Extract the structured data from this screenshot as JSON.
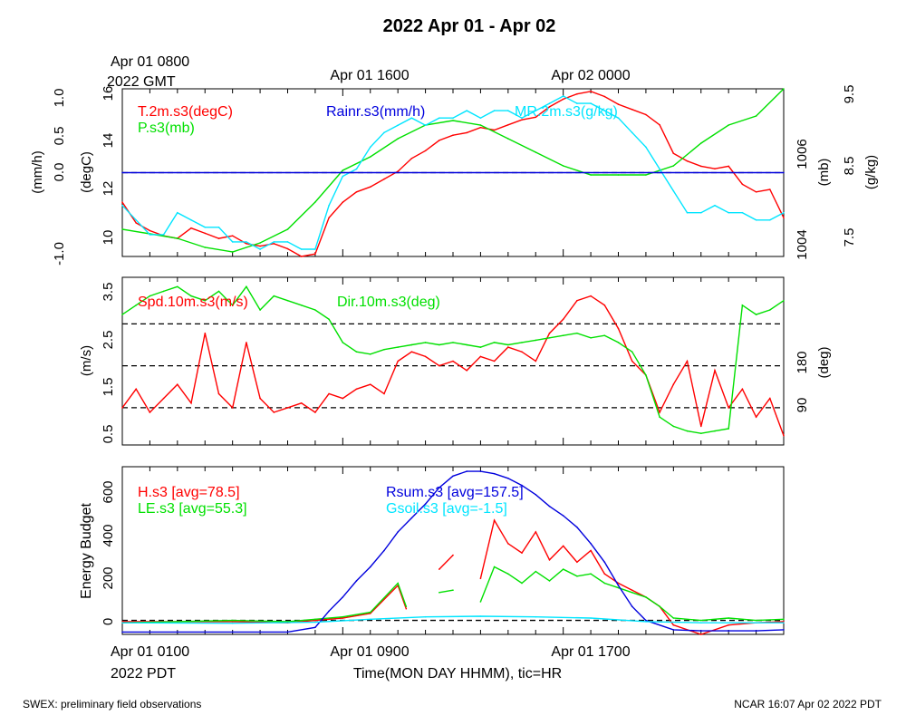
{
  "title": "2022 Apr 01 - Apr 02",
  "colors": {
    "red": "#ff0000",
    "green": "#00e000",
    "blue": "#0000dd",
    "cyan": "#00e5ff",
    "black": "#000000"
  },
  "top_labels": {
    "gmt_line1": "Apr 01 0800",
    "gmt_line2": "2022 GMT",
    "mid1": "Apr 01 1600",
    "mid2": "Apr 02 0000"
  },
  "bottom_labels": {
    "pdt_line1": "Apr 01 0100",
    "pdt_line2": "2022 PDT",
    "mid1": "Apr 01 0900",
    "mid2": "Apr 01 1700",
    "xlabel": "Time(MON DAY HHMM), tic=HR"
  },
  "footer": {
    "left": "SWEX: preliminary field observations",
    "right": "NCAR 16:07 Apr 02 2022 PDT"
  },
  "chart_data": [
    {
      "type": "line",
      "panel": "met",
      "axes": [
        {
          "label": "(mm/h)",
          "ticks": [
            "1.0",
            "0.5",
            "0.0",
            "-1.0"
          ],
          "range": [
            -1,
            1
          ]
        },
        {
          "label": "(degC)",
          "ticks": [
            "16",
            "14",
            "12",
            "10"
          ],
          "range": [
            9.5,
            16
          ]
        },
        {
          "label": "(mb)",
          "ticks": [
            "1006",
            "1004"
          ],
          "range": [
            1003.8,
            1007.5
          ]
        },
        {
          "label": "(g/kg)",
          "ticks": [
            "9.5",
            "8.5",
            "7.5"
          ],
          "range": [
            7.3,
            9.6
          ]
        }
      ],
      "x_hours": [
        0,
        24
      ],
      "series": [
        {
          "name": "T.2m.s3(degC)",
          "color": "#ff0000",
          "axis": 1,
          "x": [
            0,
            0.5,
            1,
            1.5,
            2,
            2.5,
            3,
            3.5,
            4,
            4.5,
            5,
            5.5,
            6,
            6.5,
            7,
            7.5,
            8,
            8.5,
            9,
            9.5,
            10,
            10.5,
            11,
            11.5,
            12,
            12.5,
            13,
            13.5,
            14,
            14.5,
            15,
            15.5,
            16,
            16.5,
            17,
            17.5,
            18,
            18.5,
            19,
            19.5,
            20,
            20.5,
            21,
            21.5,
            22,
            22.5,
            23,
            23.5,
            24
          ],
          "y": [
            11.6,
            10.8,
            10.5,
            10.3,
            10.2,
            10.6,
            10.4,
            10.2,
            10.3,
            10.0,
            9.9,
            10.0,
            9.8,
            9.5,
            9.6,
            11.0,
            11.6,
            12.0,
            12.2,
            12.5,
            12.8,
            13.3,
            13.6,
            14.0,
            14.2,
            14.3,
            14.5,
            14.4,
            14.6,
            14.8,
            14.9,
            15.3,
            15.6,
            15.8,
            15.9,
            15.7,
            15.4,
            15.2,
            15.0,
            14.6,
            13.5,
            13.2,
            13.0,
            12.9,
            13.0,
            12.3,
            12.0,
            12.1,
            11.0
          ]
        },
        {
          "name": "P.s3(mb)",
          "color": "#00e000",
          "axis": 2,
          "x": [
            0,
            1,
            2,
            3,
            4,
            5,
            6,
            7,
            8,
            9,
            10,
            11,
            12,
            13,
            14,
            15,
            16,
            17,
            18,
            19,
            20,
            21,
            22,
            23,
            24
          ],
          "y": [
            1004.4,
            1004.3,
            1004.2,
            1004.0,
            1003.9,
            1004.1,
            1004.4,
            1005.0,
            1005.7,
            1006.0,
            1006.4,
            1006.7,
            1006.8,
            1006.7,
            1006.4,
            1006.1,
            1005.8,
            1005.6,
            1005.6,
            1005.6,
            1005.8,
            1006.3,
            1006.7,
            1006.9,
            1007.5
          ]
        },
        {
          "name": "MR.2m.s3(g/kg)",
          "color": "#00e5ff",
          "axis": 3,
          "x": [
            0,
            0.5,
            1,
            1.5,
            2,
            2.5,
            3,
            3.5,
            4,
            4.5,
            5,
            5.5,
            6,
            6.5,
            7,
            7.5,
            8,
            8.5,
            9,
            9.5,
            10,
            10.5,
            11,
            11.5,
            12,
            12.5,
            13,
            13.5,
            14,
            14.5,
            15,
            15.5,
            16,
            16.5,
            17,
            17.5,
            18,
            18.5,
            19,
            19.5,
            20,
            20.5,
            21,
            21.5,
            22,
            22.5,
            23,
            23.5,
            24
          ],
          "y": [
            8.0,
            7.8,
            7.6,
            7.6,
            7.9,
            7.8,
            7.7,
            7.7,
            7.5,
            7.5,
            7.4,
            7.5,
            7.5,
            7.4,
            7.4,
            8.0,
            8.4,
            8.5,
            8.8,
            9.0,
            9.1,
            9.2,
            9.1,
            9.2,
            9.2,
            9.3,
            9.2,
            9.3,
            9.3,
            9.2,
            9.3,
            9.4,
            9.5,
            9.4,
            9.4,
            9.3,
            9.2,
            9.0,
            8.8,
            8.5,
            8.2,
            7.9,
            7.9,
            8.0,
            7.9,
            7.9,
            7.8,
            7.8,
            7.9
          ]
        },
        {
          "name": "Rainr.s3(mm/h)",
          "color": "#0000dd",
          "axis": 0,
          "x": [
            0,
            24
          ],
          "y": [
            0.0,
            0.0
          ]
        }
      ],
      "reference_lines": [
        {
          "axis": 0,
          "value": 0.0,
          "style": "dashed"
        }
      ]
    },
    {
      "type": "line",
      "panel": "wind",
      "axes": [
        {
          "label": "(m/s)",
          "ticks": [
            "3.5",
            "2.5",
            "1.5",
            "0.5"
          ],
          "range": [
            0.2,
            3.8
          ]
        },
        {
          "label": "(deg)",
          "ticks": [
            "180",
            "90"
          ],
          "range": [
            0,
            360
          ]
        }
      ],
      "series": [
        {
          "name": "Spd.10m.s3(m/s)",
          "color": "#ff0000",
          "axis": 0,
          "x": [
            0,
            0.5,
            1,
            1.5,
            2,
            2.5,
            3,
            3.5,
            4,
            4.5,
            5,
            5.5,
            6,
            6.5,
            7,
            7.5,
            8,
            8.5,
            9,
            9.5,
            10,
            10.5,
            11,
            11.5,
            12,
            12.5,
            13,
            13.5,
            14,
            14.5,
            15,
            15.5,
            16,
            16.5,
            17,
            17.5,
            18,
            18.5,
            19,
            19.5,
            20,
            20.5,
            21,
            21.5,
            22,
            22.5,
            23,
            23.5,
            24
          ],
          "y": [
            1.0,
            1.4,
            0.9,
            1.2,
            1.5,
            1.1,
            2.6,
            1.3,
            1.0,
            2.4,
            1.2,
            0.9,
            1.0,
            1.1,
            0.9,
            1.3,
            1.2,
            1.4,
            1.5,
            1.3,
            2.0,
            2.2,
            2.1,
            1.9,
            2.0,
            1.8,
            2.1,
            2.0,
            2.3,
            2.2,
            2.0,
            2.6,
            2.9,
            3.3,
            3.4,
            3.2,
            2.7,
            2.0,
            1.7,
            0.9,
            1.5,
            2.0,
            0.6,
            1.8,
            1.0,
            1.4,
            0.8,
            1.2,
            0.4
          ]
        },
        {
          "name": "Dir.10m.s3(deg)",
          "color": "#00e000",
          "axis": 1,
          "x": [
            0,
            0.5,
            1,
            1.5,
            2,
            2.5,
            3,
            3.5,
            4,
            4.5,
            5,
            5.5,
            6,
            6.5,
            7,
            7.5,
            8,
            8.5,
            9,
            9.5,
            10,
            10.5,
            11,
            11.5,
            12,
            12.5,
            13,
            13.5,
            14,
            14.5,
            15,
            15.5,
            16,
            16.5,
            17,
            17.5,
            18,
            18.5,
            19,
            19.5,
            20,
            20.5,
            21,
            21.5,
            22,
            22.5,
            23,
            23.5,
            24
          ],
          "y": [
            280,
            300,
            320,
            330,
            340,
            320,
            310,
            330,
            300,
            340,
            290,
            320,
            310,
            300,
            290,
            270,
            220,
            200,
            195,
            205,
            210,
            215,
            220,
            215,
            220,
            215,
            210,
            220,
            215,
            220,
            225,
            230,
            235,
            240,
            230,
            235,
            220,
            200,
            150,
            60,
            40,
            30,
            25,
            30,
            35,
            300,
            280,
            290,
            310
          ]
        }
      ],
      "reference_lines": [
        {
          "axis": 0,
          "value": 2.8,
          "style": "dashed"
        },
        {
          "axis": 0,
          "value": 1.9,
          "style": "dashed"
        },
        {
          "axis": 0,
          "value": 1.0,
          "style": "dashed"
        }
      ]
    },
    {
      "type": "line",
      "panel": "energy",
      "axes": [
        {
          "label": "Energy Budget",
          "ticks": [
            "600",
            "400",
            "200",
            "0"
          ],
          "range": [
            -60,
            660
          ]
        }
      ],
      "series": [
        {
          "name": "H.s3 [avg=78.5]",
          "color": "#ff0000",
          "x": [
            0,
            2,
            4,
            6,
            7,
            8,
            9,
            10,
            10.3,
            10.8,
            11.5,
            12,
            12.5,
            13,
            13.5,
            14,
            14.5,
            15,
            15.5,
            16,
            16.5,
            17,
            17.5,
            18,
            18.5,
            19,
            19.5,
            20,
            21,
            22,
            23,
            24
          ],
          "y": [
            -5,
            -5,
            -5,
            -10,
            0,
            10,
            30,
            150,
            50,
            null,
            220,
            280,
            null,
            180,
            430,
            330,
            290,
            380,
            260,
            320,
            250,
            300,
            200,
            160,
            130,
            100,
            60,
            -20,
            -60,
            -20,
            -10,
            -5
          ]
        },
        {
          "name": "LE.s3 [avg=55.3]",
          "color": "#00e000",
          "x": [
            0,
            2,
            4,
            6,
            7,
            8,
            9,
            10,
            10.3,
            10.8,
            11.5,
            12,
            12.5,
            13,
            13.5,
            14,
            14.5,
            15,
            15.5,
            16,
            16.5,
            17,
            17.5,
            18,
            18.5,
            19,
            19.5,
            20,
            21,
            22,
            23,
            24
          ],
          "y": [
            -10,
            -5,
            0,
            -5,
            5,
            15,
            35,
            160,
            60,
            null,
            120,
            130,
            null,
            80,
            230,
            200,
            160,
            210,
            170,
            220,
            190,
            200,
            160,
            140,
            120,
            100,
            60,
            10,
            0,
            10,
            0,
            5
          ]
        },
        {
          "name": "Rsum.s3 [avg=157.5]",
          "color": "#0000dd",
          "x": [
            0,
            1,
            2,
            3,
            4,
            5,
            6,
            7,
            7.5,
            8,
            8.5,
            9,
            9.5,
            10,
            10.5,
            11,
            11.5,
            12,
            12.5,
            13,
            13.5,
            14,
            14.5,
            15,
            15.5,
            16,
            16.5,
            17,
            17.5,
            18,
            18.5,
            19,
            20,
            21,
            22,
            23,
            24
          ],
          "y": [
            -50,
            -50,
            -50,
            -50,
            -50,
            -50,
            -50,
            -30,
            40,
            100,
            170,
            230,
            300,
            380,
            440,
            500,
            570,
            620,
            640,
            640,
            630,
            610,
            580,
            540,
            490,
            450,
            400,
            330,
            250,
            150,
            60,
            0,
            -40,
            -45,
            -45,
            -45,
            -40
          ]
        },
        {
          "name": "Gsoil.s3 [avg=-1.5]",
          "color": "#00e5ff",
          "x": [
            0,
            4,
            7,
            9,
            11,
            13,
            15,
            17,
            19,
            21,
            24
          ],
          "y": [
            -10,
            -12,
            -8,
            5,
            15,
            18,
            15,
            10,
            -5,
            -10,
            -10
          ]
        }
      ],
      "reference_lines": [
        {
          "axis": 0,
          "value": 0,
          "style": "dashed"
        }
      ]
    }
  ]
}
